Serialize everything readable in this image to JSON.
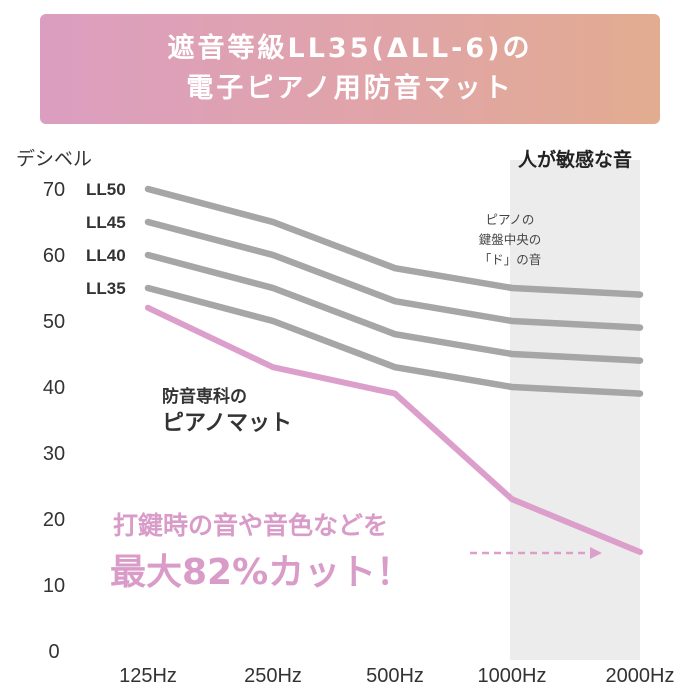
{
  "header": {
    "line1": "遮音等級LL35(ΔLL-6)の",
    "line2": "電子ピアノ用防音マット"
  },
  "annotations": {
    "sensitive_region": "人が敏感な音",
    "center_note_line1": "ピアノの",
    "center_note_line2": "鍵盤中央の",
    "center_note_line3": "「ド」の音",
    "mat_label_line1": "防音専科の",
    "mat_label_line2": "ピアノマット",
    "callout_line1": "打鍵時の音や音色などを",
    "callout_line2": "最大82%カット！"
  },
  "colors": {
    "gray_series": "#a6a6a6",
    "mat_series": "#dc9fcb",
    "shade": "#ececec",
    "callout": "#d99cc9"
  },
  "chart_data": {
    "type": "line",
    "ylabel": "デシベル",
    "xlabel": "",
    "categories": [
      "125Hz",
      "250Hz",
      "500Hz",
      "1000Hz",
      "2000Hz"
    ],
    "ylim": [
      0,
      70
    ],
    "yticks": [
      0,
      10,
      20,
      30,
      40,
      50,
      60,
      70
    ],
    "shaded_categories": [
      "1000Hz",
      "2000Hz"
    ],
    "series": [
      {
        "name": "LL50",
        "values": [
          70,
          65,
          58,
          55,
          54
        ]
      },
      {
        "name": "LL45",
        "values": [
          65,
          60,
          53,
          50,
          49
        ]
      },
      {
        "name": "LL40",
        "values": [
          60,
          55,
          48,
          45,
          44
        ]
      },
      {
        "name": "LL35",
        "values": [
          55,
          50,
          43,
          40,
          39
        ]
      },
      {
        "name": "",
        "values": [
          52,
          43,
          39,
          23,
          15
        ]
      }
    ]
  }
}
